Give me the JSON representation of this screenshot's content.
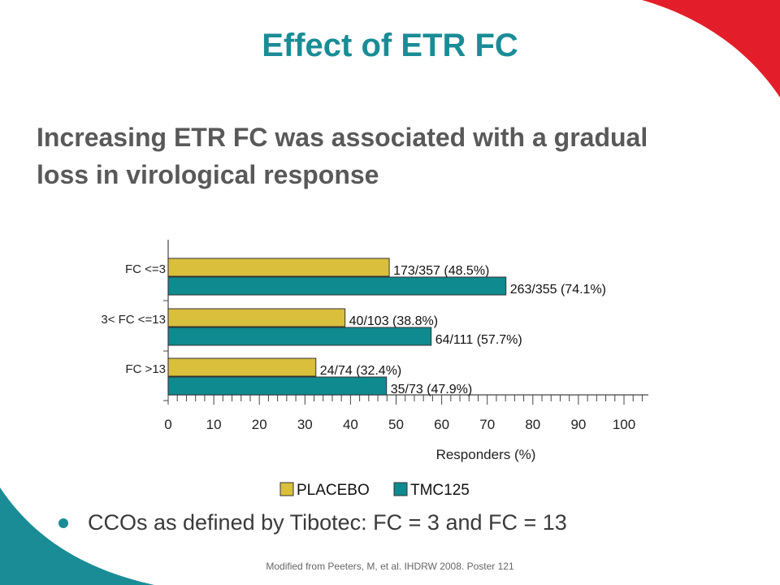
{
  "slide": {
    "title": "Effect of ETR FC",
    "subtitle": "Increasing ETR FC was associated with a gradual loss in virological response",
    "bullet": "CCOs as defined by Tibotec: FC = 3 and FC = 13",
    "footnote": "Modified from Peeters, M, et al. IHDRW 2008. Poster 121"
  },
  "colors": {
    "accent_teal": "#1a8c96",
    "accent_red": "#e31e2a",
    "placebo": "#d9bf3c",
    "tmc125": "#0f8a8f"
  },
  "chart_data": {
    "type": "bar",
    "orientation": "horizontal",
    "categories": [
      "FC <=3",
      "3< FC <=13",
      "FC >13"
    ],
    "series": [
      {
        "name": "PLACEBO",
        "color": "#d9bf3c",
        "values": [
          48.5,
          38.8,
          32.4
        ],
        "labels": [
          "173/357 (48.5%)",
          "40/103 (38.8%)",
          "24/74 (32.4%)"
        ]
      },
      {
        "name": "TMC125",
        "color": "#0f8a8f",
        "values": [
          74.1,
          57.7,
          47.9
        ],
        "labels": [
          "263/355 (74.1%)",
          "64/111 (57.7%)",
          "35/73 (47.9%)"
        ]
      }
    ],
    "xlabel": "Responders (%)",
    "ylabel": "",
    "xlim": [
      0,
      105
    ],
    "xticks": [
      0,
      10,
      20,
      30,
      40,
      50,
      60,
      70,
      80,
      90,
      100
    ],
    "grid": false,
    "legend": "bottom"
  }
}
